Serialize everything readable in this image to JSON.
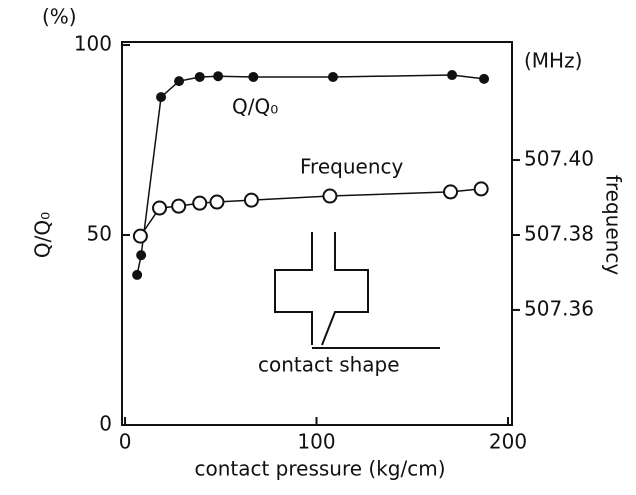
{
  "chart_data": {
    "type": "line",
    "x_label": "contact pressure (kg/cm)",
    "y_label": "Q/Q₀",
    "y_unit": "(%)",
    "y2_label": "frequency",
    "y2_unit": "(MHz)",
    "annotations": [
      "Q/Q₀",
      "Frequency",
      "contact shape"
    ],
    "xlim": [
      -1.6,
      202.1
    ],
    "xticks": [
      0,
      100,
      200
    ],
    "ylim": [
      0,
      100.8
    ],
    "yticks": [
      0,
      50,
      100
    ],
    "y2lim": [
      507.3293,
      507.4315
    ],
    "y2ticks": [
      {
        "value": 507.36,
        "label": "507.36"
      },
      {
        "value": 507.38,
        "label": "507.38"
      },
      {
        "value": 507.4,
        "label": "507.40"
      }
    ],
    "series": [
      {
        "name": "Q/Q₀",
        "color": "#111111",
        "marker": "filled",
        "x": [
          6.3,
          8.4,
          18.8,
          28.2,
          39,
          48.6,
          67,
          108.6,
          170.8,
          187.5
        ],
        "values": [
          39.5,
          44.7,
          86.3,
          90.5,
          91.6,
          91.8,
          91.6,
          91.6,
          92.1,
          91.1
        ]
      },
      {
        "name": "Frequency",
        "color": "#111111",
        "marker": "open",
        "axis": "y2",
        "x": [
          8,
          18,
          28,
          39,
          48,
          66,
          107,
          170,
          186
        ],
        "values": [
          507.3797,
          507.3872,
          507.3877,
          507.3885,
          507.3888,
          507.3893,
          507.3904,
          507.3915,
          507.3923
        ]
      }
    ]
  }
}
